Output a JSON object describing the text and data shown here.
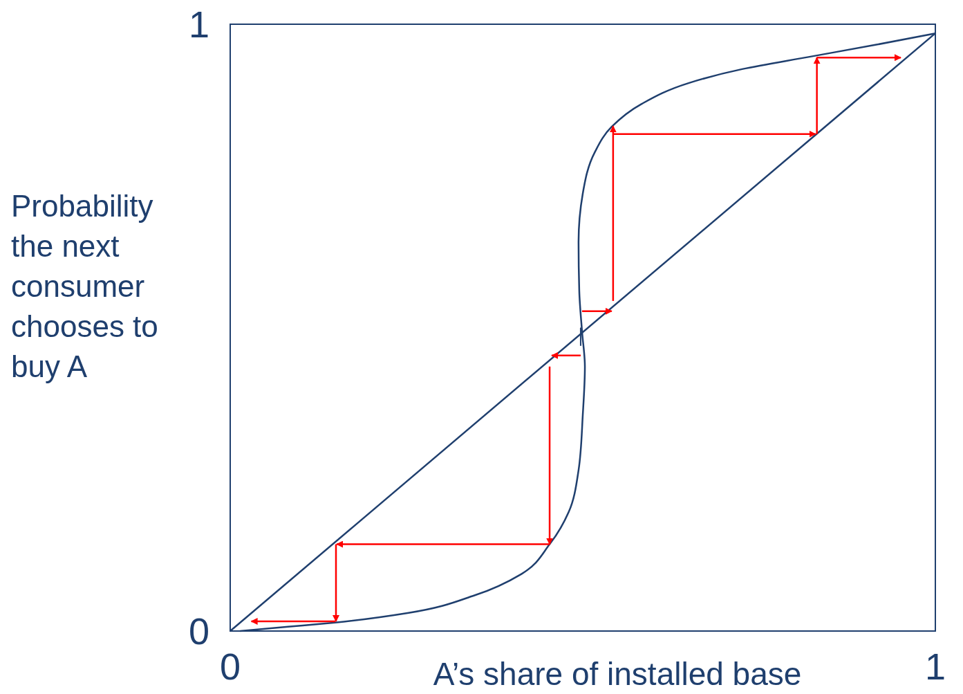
{
  "chart_data": {
    "type": "line",
    "xlabel": "A’s share of installed base",
    "ylabel": "Probability the next consumer chooses to buy A",
    "xlim": [
      0,
      1
    ],
    "ylim": [
      0,
      1
    ],
    "xticks": [
      0,
      1
    ],
    "yticks": [
      0,
      1
    ],
    "grid": false,
    "marker": "none",
    "line_style": "solid",
    "series": [
      {
        "color": "#1f3f6e",
        "x": [
          0.014,
          0.082,
          0.149,
          0.253,
          0.347,
          0.413,
          0.453,
          0.48,
          0.494,
          0.5,
          0.503,
          0.499,
          0.495,
          0.494,
          0.5,
          0.517,
          0.541,
          0.584,
          0.65,
          0.726,
          0.82,
          0.915,
          1.0
        ],
        "values": [
          0,
          0.007,
          0.014,
          0.03,
          0.059,
          0.094,
          0.143,
          0.196,
          0.265,
          0.356,
          0.436,
          0.493,
          0.561,
          0.641,
          0.721,
          0.789,
          0.831,
          0.869,
          0.903,
          0.926,
          0.946,
          0.966,
          0.985
        ]
      },
      {
        "color": "#1f3f6e",
        "x": [
          0,
          1
        ],
        "values": [
          0,
          0.985
        ]
      }
    ]
  }
}
